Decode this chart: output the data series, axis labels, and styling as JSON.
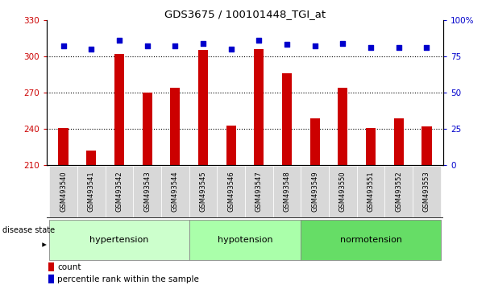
{
  "title": "GDS3675 / 100101448_TGI_at",
  "samples": [
    "GSM493540",
    "GSM493541",
    "GSM493542",
    "GSM493543",
    "GSM493544",
    "GSM493545",
    "GSM493546",
    "GSM493547",
    "GSM493548",
    "GSM493549",
    "GSM493550",
    "GSM493551",
    "GSM493552",
    "GSM493553"
  ],
  "bar_values": [
    241,
    222,
    302,
    270,
    274,
    305,
    243,
    306,
    286,
    249,
    274,
    241,
    249,
    242
  ],
  "percentile_values": [
    82,
    80,
    86,
    82,
    82,
    84,
    80,
    86,
    83,
    82,
    84,
    81,
    81,
    81
  ],
  "bar_color": "#cc0000",
  "dot_color": "#0000cc",
  "ymin": 210,
  "ymax": 330,
  "y_ticks": [
    210,
    240,
    270,
    300,
    330
  ],
  "y2min": 0,
  "y2max": 100,
  "y2_ticks": [
    0,
    25,
    50,
    75,
    100
  ],
  "groups": [
    {
      "label": "hypertension",
      "start": 0,
      "end": 4
    },
    {
      "label": "hypotension",
      "start": 5,
      "end": 8
    },
    {
      "label": "normotension",
      "start": 9,
      "end": 13
    }
  ],
  "group_colors": [
    "#ccffcc",
    "#aaffaa",
    "#66dd66"
  ],
  "disease_state_label": "disease state",
  "legend_count_label": "count",
  "legend_percentile_label": "percentile rank within the sample",
  "bg_color": "#ffffff",
  "tick_label_color_left": "#cc0000",
  "tick_label_color_right": "#0000cc",
  "dotted_line_color": "#000000",
  "bar_base": 210,
  "xticklabel_bg": "#d8d8d8",
  "bar_width": 0.35
}
